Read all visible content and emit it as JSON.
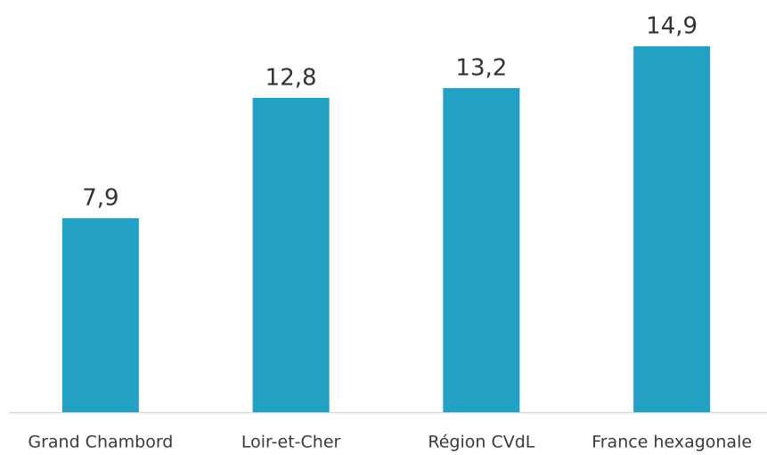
{
  "chart_data": {
    "type": "bar",
    "categories": [
      "Grand Chambord",
      "Loir-et-Cher",
      "Région CVdL",
      "France hexagonale"
    ],
    "values": [
      7.9,
      12.8,
      13.2,
      14.9
    ],
    "value_labels": [
      "7,9",
      "12,8",
      "13,2",
      "14,9"
    ],
    "color": "#23a1c5"
  }
}
